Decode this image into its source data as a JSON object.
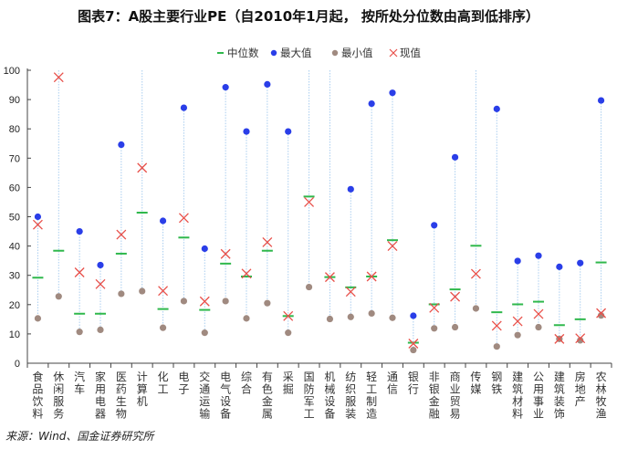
{
  "chart_data": {
    "type": "scatter",
    "title": "图表7：A股主要行业PE（自2010年1月起， 按所处分位数由高到低排序）",
    "source": "来源：Wind、国金证券研究所",
    "ylim": [
      0,
      100
    ],
    "yticks": [
      "0",
      "10",
      "20",
      "30",
      "40",
      "50",
      "60",
      "70",
      "80",
      "90",
      "100"
    ],
    "legend": {
      "placement": "top-center",
      "entries": [
        "中位数",
        "最大值",
        "最小值",
        "现值"
      ]
    },
    "colors": {
      "median": "#2fb84c",
      "max": "#2a3ee8",
      "min": "#a08a80",
      "current": "#e8504a",
      "range_line": "#a9cdef"
    },
    "categories": [
      "食品饮料",
      "休闲服务",
      "汽车",
      "家用电器",
      "医药生物",
      "计算机",
      "化工",
      "电子",
      "交通运输",
      "电气设备",
      "综合",
      "有色金属",
      "采掘",
      "国防军工",
      "机械设备",
      "纺织服装",
      "轻工制造",
      "通信",
      "银行",
      "非银金融",
      "商业贸易",
      "传媒",
      "钢铁",
      "建筑材料",
      "公用事业",
      "建筑装饰",
      "房地产",
      "农林牧渔"
    ],
    "series": [
      {
        "name": "中位数",
        "values": [
          29.2,
          38.4,
          16.9,
          16.9,
          37.4,
          51.4,
          18.5,
          42.9,
          18.2,
          34.0,
          29.6,
          38.4,
          16.1,
          56.9,
          29.4,
          25.9,
          29.6,
          42.0,
          7.0,
          20.1,
          25.2,
          40.1,
          17.4,
          20.1,
          21.0,
          13.0,
          15.0,
          34.4
        ]
      },
      {
        "name": "最大值",
        "values": [
          50.0,
          null,
          45.0,
          33.5,
          74.6,
          null,
          48.6,
          87.2,
          39.1,
          94.2,
          79.1,
          95.2,
          79.1,
          null,
          null,
          59.4,
          88.6,
          92.3,
          16.2,
          47.1,
          70.3,
          null,
          86.8,
          34.9,
          36.7,
          32.9,
          34.2,
          89.7
        ]
      },
      {
        "name": "最小值",
        "values": [
          15.3,
          22.8,
          10.7,
          11.4,
          23.7,
          24.6,
          12.1,
          21.2,
          10.4,
          21.2,
          15.3,
          20.5,
          10.4,
          26.0,
          15.1,
          15.8,
          17.0,
          15.5,
          4.5,
          11.9,
          12.3,
          18.7,
          5.7,
          9.6,
          12.3,
          8.3,
          7.8,
          16.3
        ]
      },
      {
        "name": "现值",
        "values": [
          47.3,
          97.6,
          31.0,
          27.0,
          43.9,
          66.7,
          24.7,
          49.6,
          21.1,
          37.3,
          30.6,
          41.3,
          16.1,
          55.0,
          29.4,
          24.4,
          29.6,
          40.0,
          6.7,
          18.9,
          22.7,
          30.5,
          12.8,
          14.3,
          16.8,
          8.3,
          8.5,
          17.1
        ]
      }
    ]
  }
}
